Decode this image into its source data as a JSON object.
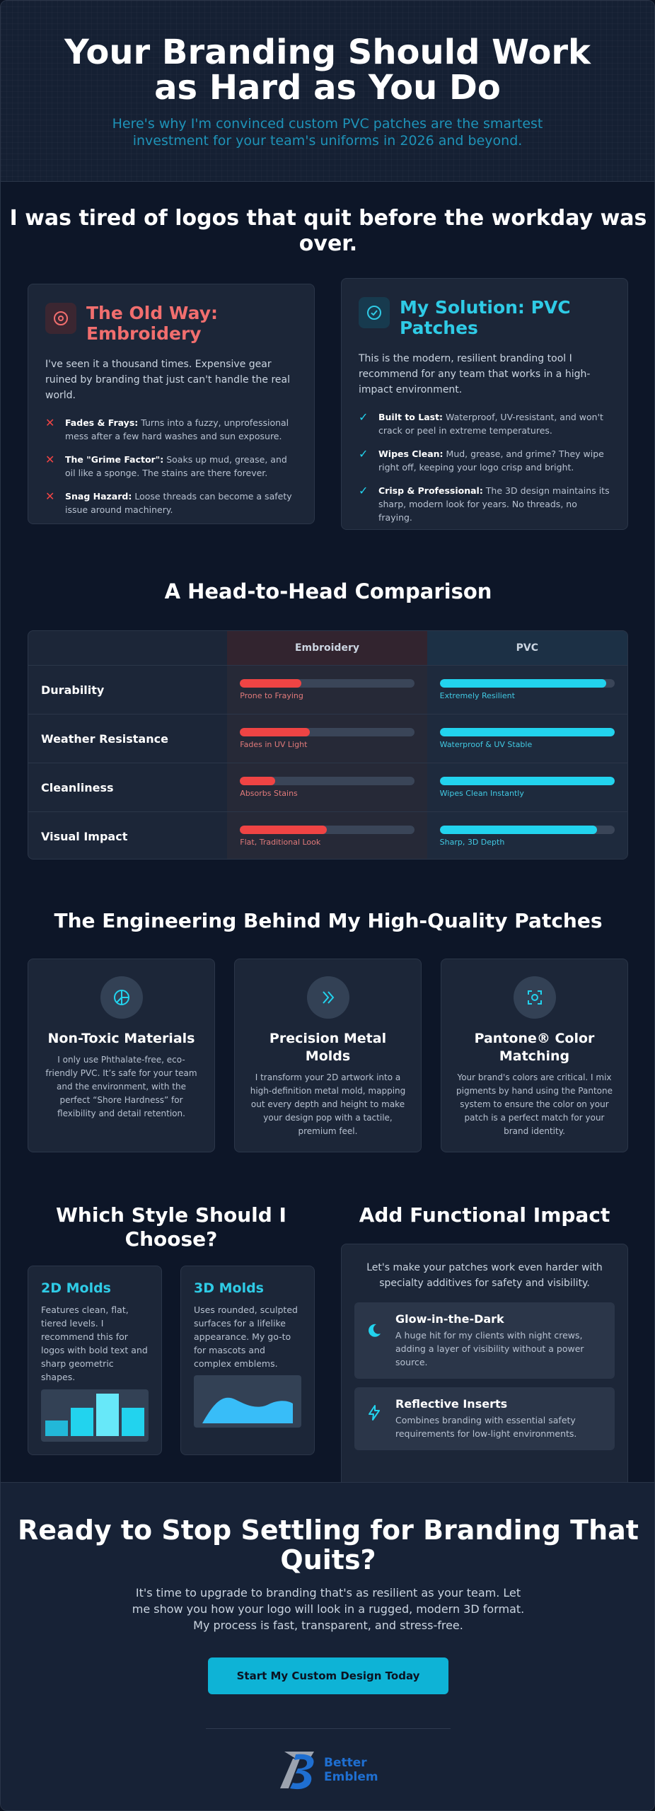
{
  "hero": {
    "title": "Your Branding Should Work as Hard as You Do",
    "subtitle": "Here's why I'm convinced custom PVC patches are the smartest investment for your team's uniforms in 2026 and beyond."
  },
  "problem": {
    "title": "I was tired of logos that quit before the workday was over.",
    "old_way": {
      "title": "The Old Way: Embroidery",
      "icon": "x-circle-icon",
      "intro": "I've seen it a thousand times. Expensive gear ruined by branding that just can't handle the real world.",
      "points": [
        {
          "label": "Fades & Frays:",
          "text": " Turns into a fuzzy, unprofessional mess after a few hard washes and sun exposure."
        },
        {
          "label": "The \"Grime Factor\":",
          "text": " Soaks up mud, grease, and oil like a sponge. The stains are there forever."
        },
        {
          "label": "Snag Hazard:",
          "text": " Loose threads can become a safety issue around machinery."
        }
      ]
    },
    "solution": {
      "title": "My Solution: PVC Patches",
      "icon": "check-circle-icon",
      "intro": "This is the modern, resilient branding tool I recommend for any team that works in a high-impact environment.",
      "points": [
        {
          "label": "Built to Last:",
          "text": " Waterproof, UV-resistant, and won't crack or peel in extreme temperatures."
        },
        {
          "label": "Wipes Clean:",
          "text": " Mud, grease, and grime? They wipe right off, keeping your logo crisp and bright."
        },
        {
          "label": "Crisp & Professional:",
          "text": " The 3D design maintains its sharp, modern look for years. No threads, no fraying."
        }
      ]
    }
  },
  "comparison": {
    "title": "A Head-to-Head Comparison",
    "col_embroidery": "Embroidery",
    "col_pvc": "PVC",
    "rows": [
      {
        "label": "Durability",
        "emb_level": 35,
        "emb_caption": "Prone to Fraying",
        "pvc_level": 95,
        "pvc_caption": "Extremely Resilient"
      },
      {
        "label": "Weather Resistance",
        "emb_level": 40,
        "emb_caption": "Fades in UV Light",
        "pvc_level": 100,
        "pvc_caption": "Waterproof & UV Stable"
      },
      {
        "label": "Cleanliness",
        "emb_level": 20,
        "emb_caption": "Absorbs Stains",
        "pvc_level": 100,
        "pvc_caption": "Wipes Clean Instantly"
      },
      {
        "label": "Visual Impact",
        "emb_level": 50,
        "emb_caption": "Flat, Traditional Look",
        "pvc_level": 90,
        "pvc_caption": "Sharp, 3D Depth"
      }
    ]
  },
  "engineering": {
    "title": "The Engineering Behind My High-Quality Patches",
    "features": [
      {
        "icon": "leaf-icon",
        "title": "Non-Toxic Materials",
        "text": "I only use Phthalate-free, eco-friendly PVC. It’s safe for your team and the environment, with the perfect “Shore Hardness” for flexibility and detail retention."
      },
      {
        "icon": "chevrons-right-icon",
        "title": "Precision Metal Molds",
        "text": "I transform your 2D artwork into a high-definition metal mold, mapping out every depth and height to make your design pop with a tactile, premium feel."
      },
      {
        "icon": "color-target-icon",
        "title": "Pantone® Color Matching",
        "text": "Your brand's colors are critical. I mix pigments by hand using the Pantone system to ensure the color on your patch is a perfect match for your brand identity."
      }
    ]
  },
  "styles": {
    "title": "Which Style Should I Choose?",
    "items": [
      {
        "title": "2D Molds",
        "text": "Features clean, flat, tiered levels. I recommend this for logos with bold text and sharp geometric shapes."
      },
      {
        "title": "3D Molds",
        "text": "Uses rounded, sculpted surfaces for a lifelike appearance. My go-to for mascots and complex emblems."
      }
    ]
  },
  "functional": {
    "title": "Add Functional Impact",
    "intro": "Let's make your patches work even harder with specialty additives for safety and visibility.",
    "items": [
      {
        "icon": "moon-icon",
        "title": "Glow-in-the-Dark",
        "text": "A huge hit for my clients with night crews, adding a layer of visibility without a power source."
      },
      {
        "icon": "lightning-icon",
        "title": "Reflective Inserts",
        "text": "Combines branding with essential safety requirements for low-light environments."
      }
    ]
  },
  "cta": {
    "title": "Ready to Stop Settling for Branding That Quits?",
    "text": "It's time to upgrade to branding that's as resilient as your team. Let me show you how your logo will look in a rugged, modern 3D format. My process is fast, transparent, and stress-free.",
    "button": "Start My Custom Design Today",
    "logo_line1": "Better",
    "logo_line2": "Emblem"
  },
  "colors": {
    "accent_cyan": "#22d3ee",
    "accent_red": "#ef4444",
    "button": "#0eb3d6",
    "background": "#0d1628"
  }
}
